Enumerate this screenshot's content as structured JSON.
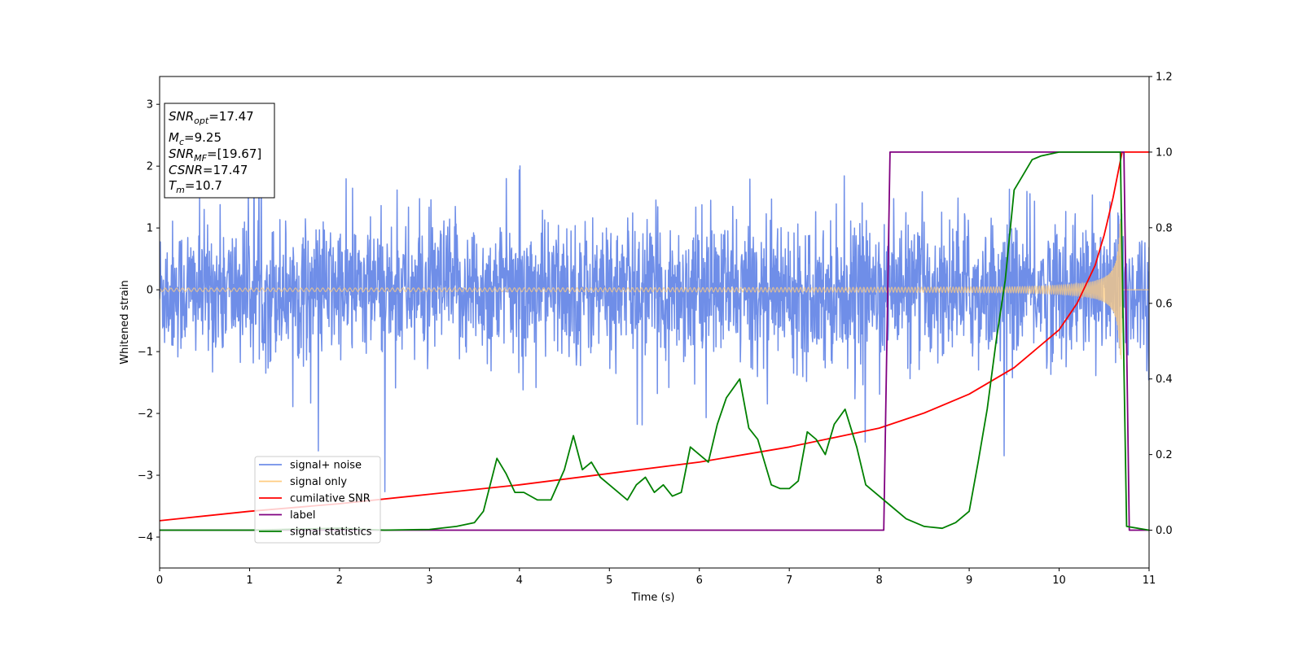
{
  "chart_data": {
    "type": "line",
    "xlabel": "Time (s)",
    "ylabel_left": "Whitened strain",
    "ylabel_right": "",
    "xlim": [
      0,
      11
    ],
    "ylim_left": [
      -4.5,
      3.45
    ],
    "ylim_right": [
      -0.1,
      1.2
    ],
    "x_ticks": [
      "0",
      "1",
      "2",
      "3",
      "4",
      "5",
      "6",
      "7",
      "8",
      "9",
      "10",
      "11"
    ],
    "y_left_ticks": [
      "3",
      "2",
      "1",
      "0",
      "−1",
      "−2",
      "−3",
      "−4"
    ],
    "y_right_ticks": [
      "1.2",
      "1.0",
      "0.8",
      "0.6",
      "0.4",
      "0.2",
      "0.0"
    ],
    "grid": false,
    "legend": {
      "placement": "lower-left",
      "entries": [
        {
          "label": "signal+ noise",
          "color": "#6f8ee8"
        },
        {
          "label": "signal only",
          "color": "#ffcc80"
        },
        {
          "label": "cumilative SNR",
          "color": "#ff0000"
        },
        {
          "label": "label",
          "color": "#800080"
        },
        {
          "label": "signal statistics",
          "color": "#008000"
        }
      ]
    },
    "info_box": {
      "snr_opt": {
        "var": "SNR",
        "sub": "opt",
        "value": "=17.47"
      },
      "mc": {
        "var": "M",
        "sub": "c",
        "value": "=9.25"
      },
      "snr_mf": {
        "var": "SNR",
        "sub": "MF",
        "value": "=[19.67]"
      },
      "csnr": {
        "var": "CSNR",
        "sub": "",
        "value": "=17.47"
      },
      "tm": {
        "var": "T",
        "sub": "m",
        "value": "=10.7"
      }
    },
    "series": [
      {
        "name": "signal+ noise",
        "axis": "left",
        "description_type": "noise",
        "noise_std": 0.55,
        "color": "#6f8ee8"
      },
      {
        "name": "signal only",
        "axis": "left",
        "description_type": "chirp",
        "merger_time": 10.7,
        "color": "#ffcc80"
      },
      {
        "name": "cumilative SNR",
        "axis": "right",
        "color": "#ff0000",
        "x": [
          0,
          1,
          2,
          3,
          4,
          5,
          6,
          7,
          7.5,
          8,
          8.5,
          9,
          9.5,
          10,
          10.2,
          10.4,
          10.5,
          10.6,
          10.7,
          11
        ],
        "y": [
          0.025,
          0.05,
          0.07,
          0.095,
          0.12,
          0.15,
          0.18,
          0.22,
          0.245,
          0.27,
          0.31,
          0.36,
          0.43,
          0.53,
          0.6,
          0.7,
          0.78,
          0.88,
          1.0,
          1.0
        ]
      },
      {
        "name": "label",
        "axis": "right",
        "color": "#800080",
        "x": [
          0,
          8.05,
          8.12,
          10.72,
          10.78,
          11
        ],
        "y": [
          0,
          0,
          1,
          1,
          0,
          0
        ]
      },
      {
        "name": "signal statistics",
        "axis": "right",
        "color": "#008000",
        "x": [
          0,
          1,
          2,
          2.5,
          3,
          3.3,
          3.5,
          3.6,
          3.75,
          3.85,
          3.95,
          4.05,
          4.2,
          4.35,
          4.5,
          4.6,
          4.7,
          4.8,
          4.9,
          5.0,
          5.1,
          5.2,
          5.3,
          5.4,
          5.5,
          5.6,
          5.7,
          5.8,
          5.9,
          6.0,
          6.1,
          6.2,
          6.3,
          6.45,
          6.55,
          6.65,
          6.8,
          6.9,
          7.0,
          7.1,
          7.2,
          7.3,
          7.4,
          7.5,
          7.62,
          7.75,
          7.85,
          7.95,
          8.1,
          8.3,
          8.5,
          8.7,
          8.85,
          9.0,
          9.1,
          9.2,
          9.3,
          9.4,
          9.5,
          9.6,
          9.7,
          9.8,
          10.0,
          10.3,
          10.6,
          10.68,
          10.75,
          11
        ],
        "y": [
          0.0,
          0.0,
          0.005,
          0.0,
          0.002,
          0.01,
          0.02,
          0.05,
          0.19,
          0.15,
          0.1,
          0.1,
          0.08,
          0.08,
          0.16,
          0.25,
          0.16,
          0.18,
          0.14,
          0.12,
          0.1,
          0.08,
          0.12,
          0.14,
          0.1,
          0.12,
          0.09,
          0.1,
          0.22,
          0.2,
          0.18,
          0.28,
          0.35,
          0.4,
          0.27,
          0.24,
          0.12,
          0.11,
          0.11,
          0.13,
          0.26,
          0.24,
          0.2,
          0.28,
          0.32,
          0.22,
          0.12,
          0.1,
          0.07,
          0.03,
          0.01,
          0.005,
          0.02,
          0.05,
          0.18,
          0.32,
          0.5,
          0.66,
          0.9,
          0.94,
          0.98,
          0.99,
          1.0,
          1.0,
          1.0,
          1.0,
          0.01,
          0.0
        ]
      }
    ]
  }
}
